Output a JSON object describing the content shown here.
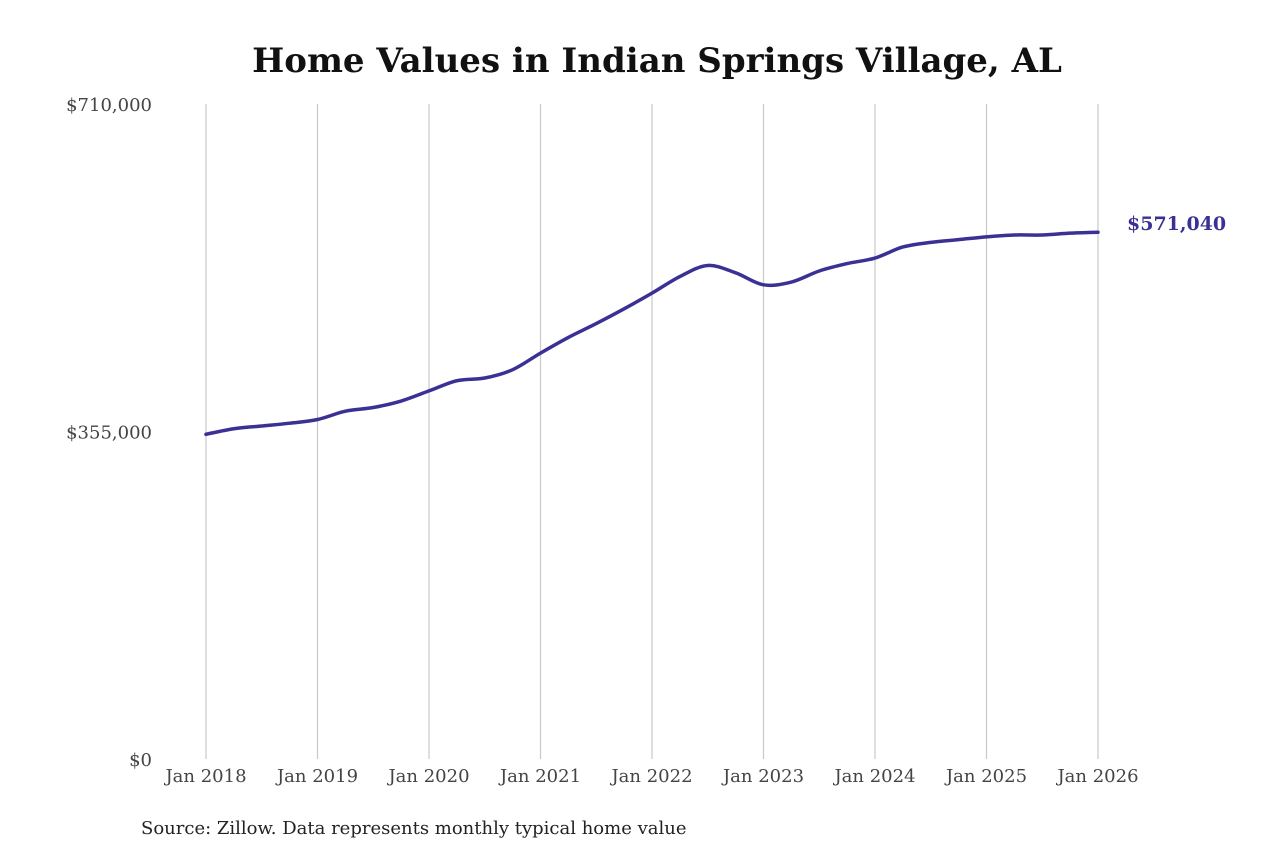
{
  "chart_data": {
    "type": "line",
    "title": "Home Values in Indian Springs Village, AL",
    "source_note": "Source: Zillow. Data represents monthly typical home value",
    "xlabel": "",
    "ylabel": "",
    "ylim": [
      0,
      710000
    ],
    "xlim": [
      "2018-01",
      "2026-01"
    ],
    "y_ticks": [
      {
        "value": 0,
        "label": "$0"
      },
      {
        "value": 355000,
        "label": "$355,000"
      },
      {
        "value": 710000,
        "label": "$710,000"
      }
    ],
    "x_ticks": [
      {
        "value": "2018-01",
        "label": "Jan 2018"
      },
      {
        "value": "2019-01",
        "label": "Jan 2019"
      },
      {
        "value": "2020-01",
        "label": "Jan 2020"
      },
      {
        "value": "2021-01",
        "label": "Jan 2021"
      },
      {
        "value": "2022-01",
        "label": "Jan 2022"
      },
      {
        "value": "2023-01",
        "label": "Jan 2023"
      },
      {
        "value": "2024-01",
        "label": "Jan 2024"
      },
      {
        "value": "2025-01",
        "label": "Jan 2025"
      },
      {
        "value": "2026-01",
        "label": "Jan 2026"
      }
    ],
    "grid": {
      "vertical": true,
      "horizontal": false
    },
    "color": "#3b3194",
    "end_label": "$571,040",
    "series": [
      {
        "points": [
          {
            "x": "2018-01",
            "y": 352000
          },
          {
            "x": "2018-04",
            "y": 358000
          },
          {
            "x": "2018-07",
            "y": 361000
          },
          {
            "x": "2018-10",
            "y": 364000
          },
          {
            "x": "2019-01",
            "y": 368000
          },
          {
            "x": "2019-04",
            "y": 377000
          },
          {
            "x": "2019-07",
            "y": 381000
          },
          {
            "x": "2019-10",
            "y": 388000
          },
          {
            "x": "2020-01",
            "y": 399000
          },
          {
            "x": "2020-04",
            "y": 410000
          },
          {
            "x": "2020-07",
            "y": 413000
          },
          {
            "x": "2020-10",
            "y": 422000
          },
          {
            "x": "2021-01",
            "y": 440000
          },
          {
            "x": "2021-04",
            "y": 457000
          },
          {
            "x": "2021-07",
            "y": 472000
          },
          {
            "x": "2021-10",
            "y": 488000
          },
          {
            "x": "2022-01",
            "y": 505000
          },
          {
            "x": "2022-04",
            "y": 523000
          },
          {
            "x": "2022-07",
            "y": 535000
          },
          {
            "x": "2022-10",
            "y": 527000
          },
          {
            "x": "2023-01",
            "y": 514000
          },
          {
            "x": "2023-04",
            "y": 517000
          },
          {
            "x": "2023-07",
            "y": 529000
          },
          {
            "x": "2023-10",
            "y": 537000
          },
          {
            "x": "2024-01",
            "y": 543000
          },
          {
            "x": "2024-04",
            "y": 555000
          },
          {
            "x": "2024-07",
            "y": 560000
          },
          {
            "x": "2024-10",
            "y": 563000
          },
          {
            "x": "2025-01",
            "y": 566000
          },
          {
            "x": "2025-04",
            "y": 568000
          },
          {
            "x": "2025-07",
            "y": 568000
          },
          {
            "x": "2025-10",
            "y": 570000
          },
          {
            "x": "2026-01",
            "y": 571040
          }
        ]
      }
    ]
  }
}
